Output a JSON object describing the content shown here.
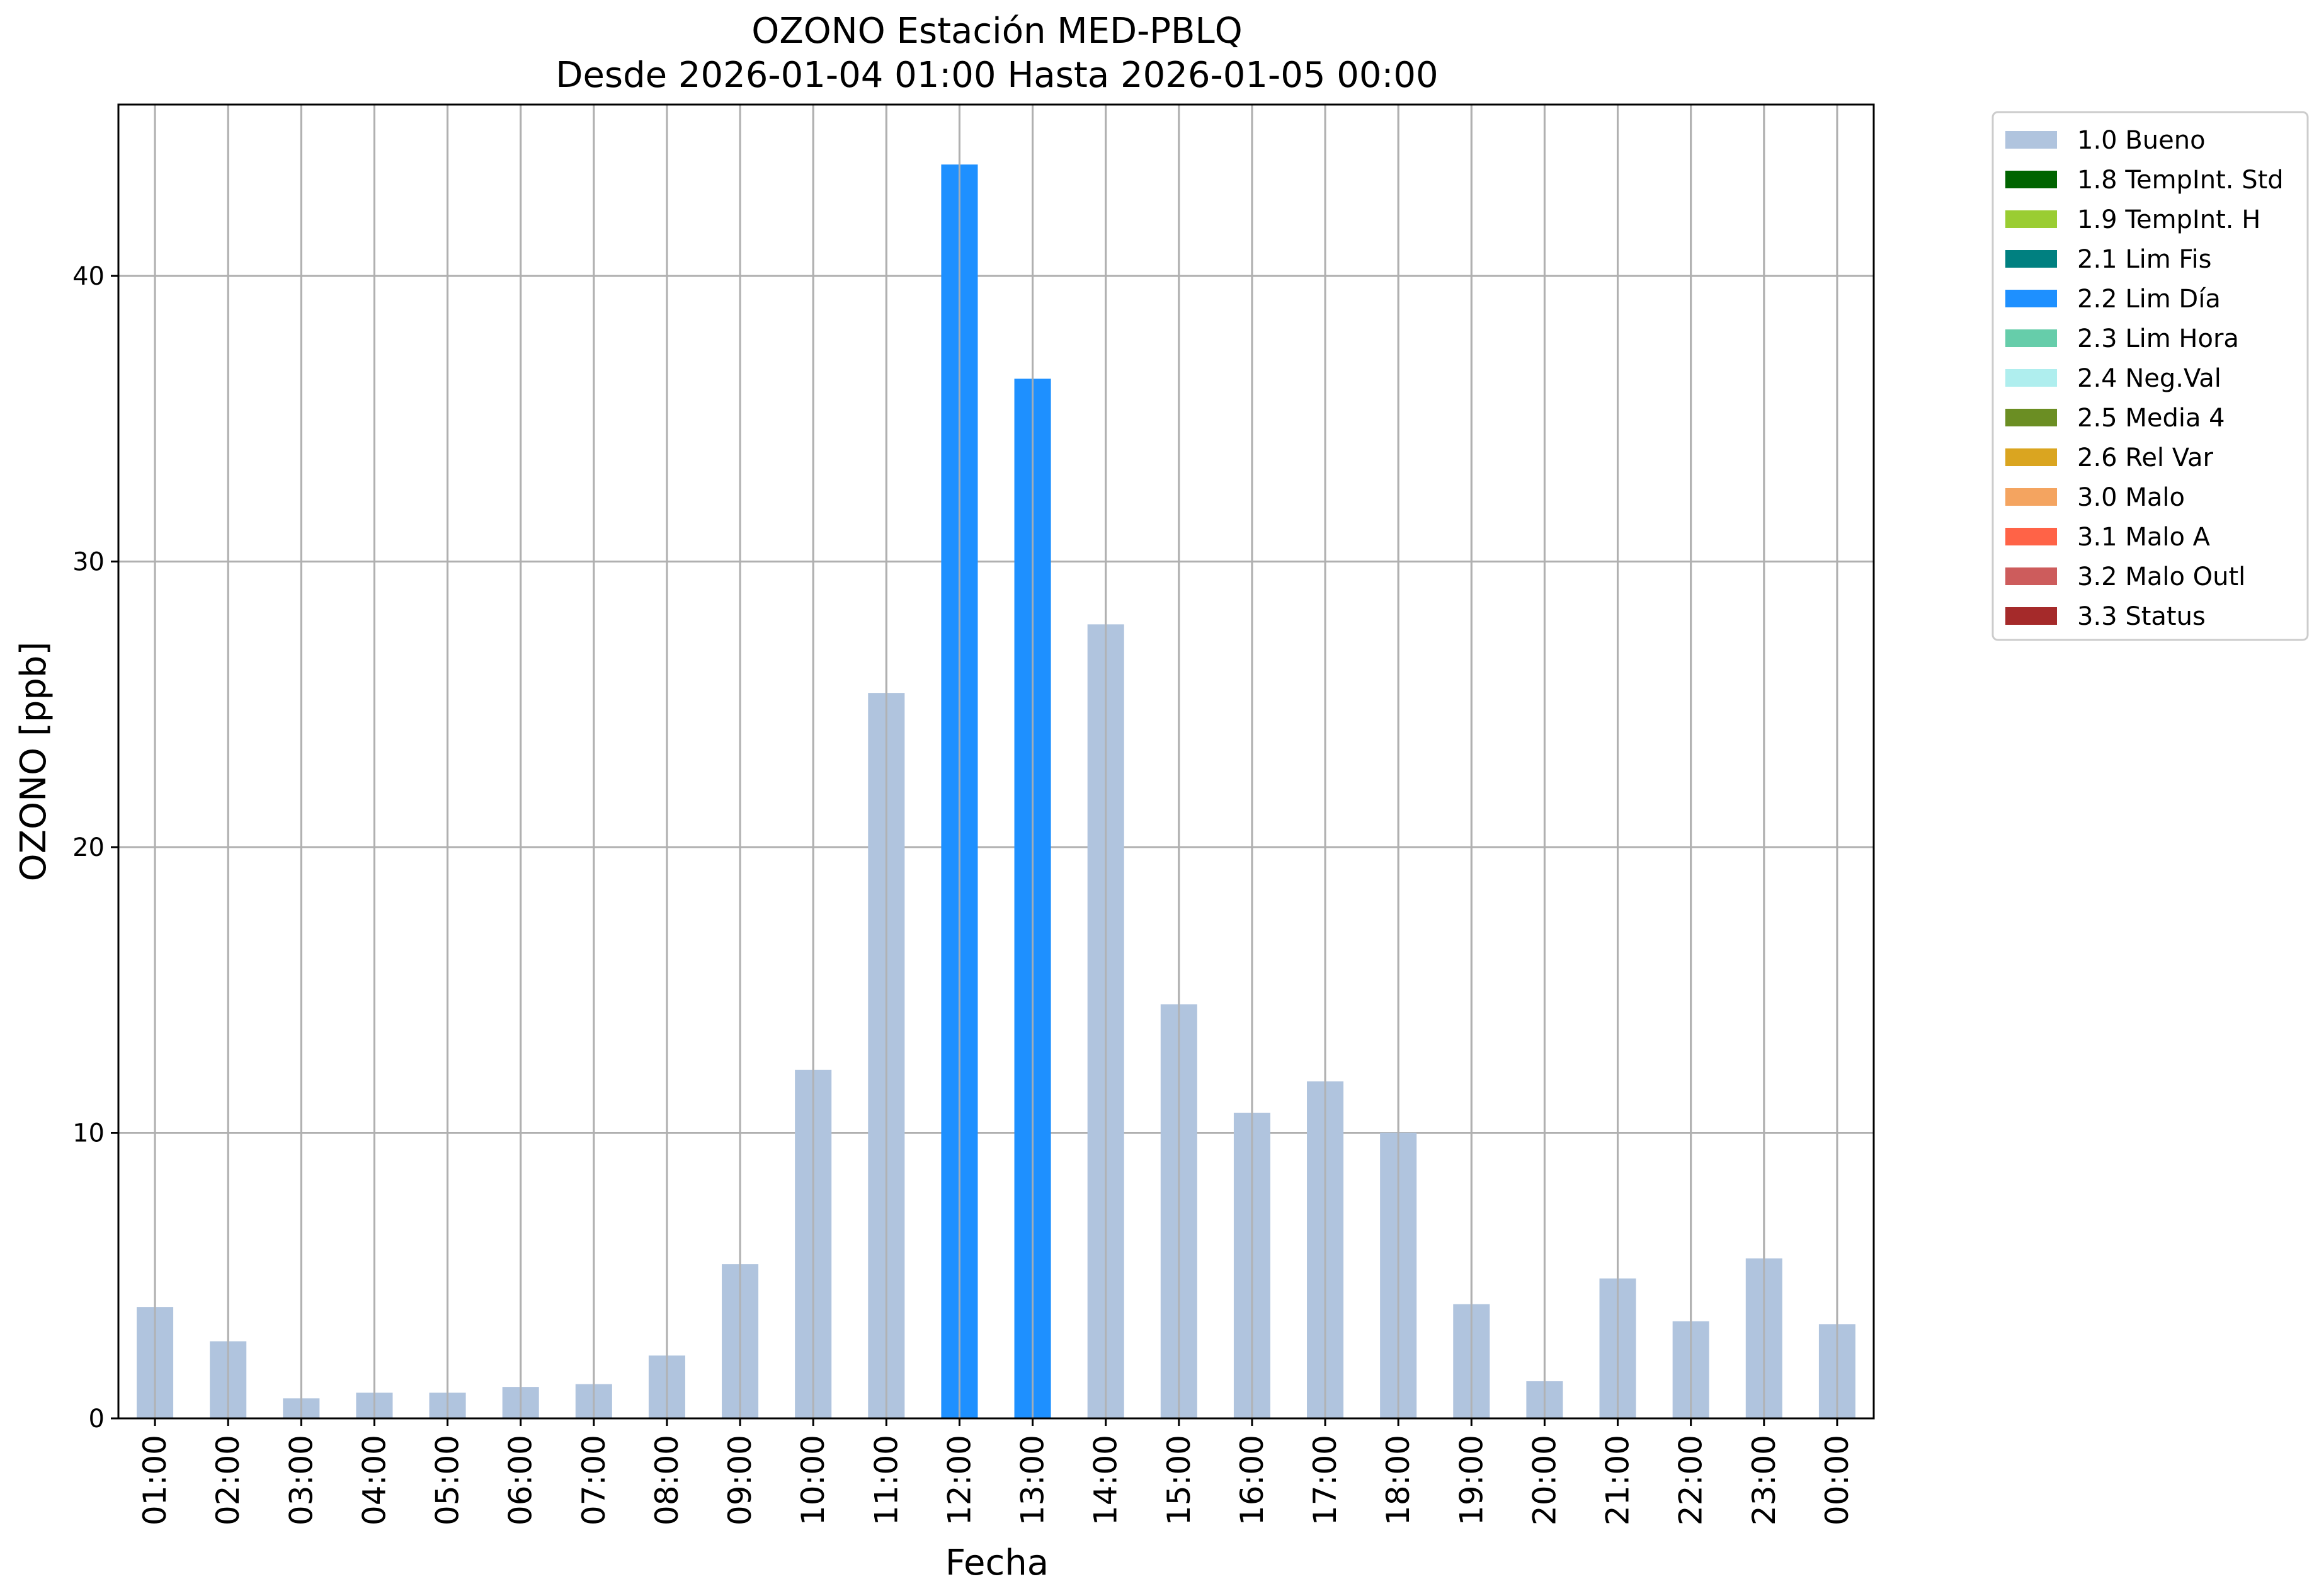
{
  "chart_data": {
    "type": "bar",
    "title": "OZONO Estación MED-PBLQ",
    "subtitle": "Desde 2026-01-04 01:00 Hasta 2026-01-05 00:00",
    "xlabel": "Fecha",
    "ylabel": "OZONO [ppb]",
    "categories": [
      "01:00",
      "02:00",
      "03:00",
      "04:00",
      "05:00",
      "06:00",
      "07:00",
      "08:00",
      "09:00",
      "10:00",
      "11:00",
      "12:00",
      "13:00",
      "14:00",
      "15:00",
      "16:00",
      "17:00",
      "18:00",
      "19:00",
      "20:00",
      "21:00",
      "22:00",
      "23:00",
      "00:00"
    ],
    "values": [
      3.9,
      2.7,
      0.7,
      0.9,
      0.9,
      1.1,
      1.2,
      2.2,
      5.4,
      12.2,
      25.4,
      43.9,
      36.4,
      27.8,
      14.5,
      10.7,
      11.8,
      10.0,
      4.0,
      1.3,
      4.9,
      3.4,
      5.6,
      3.3
    ],
    "flags": [
      "1.0 Bueno",
      "1.0 Bueno",
      "1.0 Bueno",
      "1.0 Bueno",
      "1.0 Bueno",
      "1.0 Bueno",
      "1.0 Bueno",
      "1.0 Bueno",
      "1.0 Bueno",
      "1.0 Bueno",
      "1.0 Bueno",
      "2.2 Lim Día",
      "2.2 Lim Día",
      "1.0 Bueno",
      "1.0 Bueno",
      "1.0 Bueno",
      "1.0 Bueno",
      "1.0 Bueno",
      "1.0 Bueno",
      "1.0 Bueno",
      "1.0 Bueno",
      "1.0 Bueno",
      "1.0 Bueno",
      "1.0 Bueno"
    ],
    "ylim": [
      0,
      46
    ],
    "yticks": [
      0,
      10,
      20,
      30,
      40
    ],
    "grid": true,
    "legend_position": "outside-top-right",
    "legend": [
      {
        "label": "1.0 Bueno",
        "color": "#b0c4de"
      },
      {
        "label": "1.8 TempInt. Std",
        "color": "#006400"
      },
      {
        "label": "1.9 TempInt. H",
        "color": "#9acd32"
      },
      {
        "label": "2.1 Lim Fis",
        "color": "#008080"
      },
      {
        "label": "2.2 Lim Día",
        "color": "#1e90ff"
      },
      {
        "label": "2.3 Lim Hora",
        "color": "#66cdaa"
      },
      {
        "label": "2.4 Neg.Val",
        "color": "#afeeee"
      },
      {
        "label": "2.5 Media 4",
        "color": "#6b8e23"
      },
      {
        "label": "2.6 Rel Var",
        "color": "#daa520"
      },
      {
        "label": "3.0 Malo",
        "color": "#f4a460"
      },
      {
        "label": "3.1 Malo A",
        "color": "#ff6347"
      },
      {
        "label": "3.2 Malo Outl",
        "color": "#cd5c5c"
      },
      {
        "label": "3.3 Status",
        "color": "#a52a2a"
      }
    ]
  }
}
